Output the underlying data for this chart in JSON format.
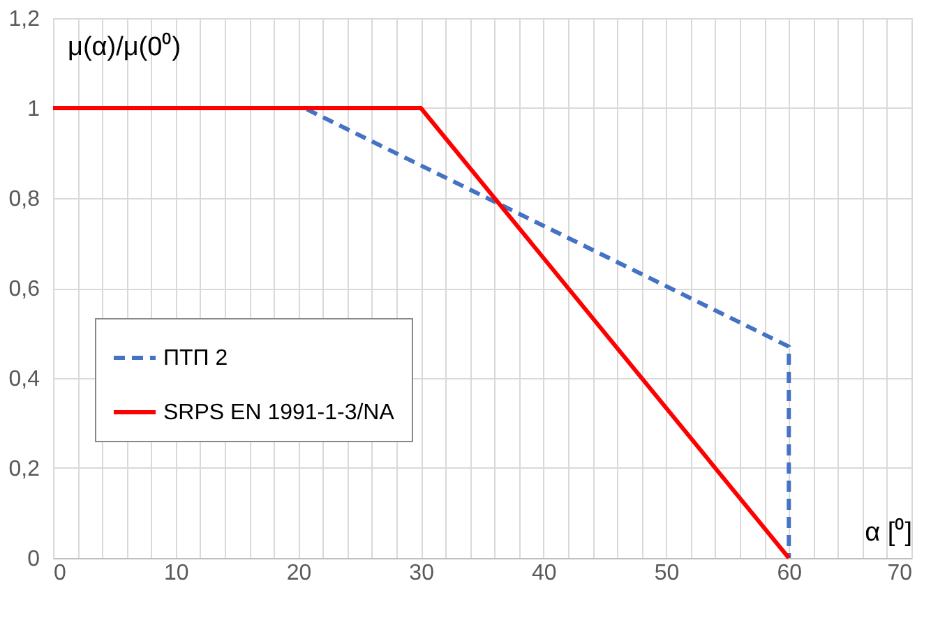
{
  "chart_data": {
    "type": "line",
    "xlabel": "α [⁰]",
    "ylabel": "μ(α)/μ(0⁰)",
    "series": [
      {
        "name": "ПТП 2",
        "color": "#4472c4",
        "line_style": "dashed",
        "x": [
          0,
          20.5,
          60,
          60
        ],
        "values": [
          1,
          1,
          0.47,
          0
        ]
      },
      {
        "name": "SRPS EN 1991-1-3/NA",
        "color": "#ff0000",
        "line_style": "solid",
        "x": [
          0,
          30,
          60
        ],
        "values": [
          1,
          1,
          0
        ]
      }
    ],
    "xlim": [
      0,
      70
    ],
    "ylim": [
      0,
      1.2
    ],
    "xticks": [
      0,
      {
        "value": 2,
        "label": null
      },
      {
        "value": 4,
        "label": null
      },
      {
        "value": 6,
        "label": null
      },
      {
        "value": 8,
        "label": null
      },
      10,
      {
        "value": 12,
        "label": null
      },
      {
        "value": 14,
        "label": null
      },
      {
        "value": 16,
        "label": null
      },
      {
        "value": 18,
        "label": null
      },
      20,
      {
        "value": 22,
        "label": null
      },
      {
        "value": 24,
        "label": null
      },
      {
        "value": 26,
        "label": null
      },
      {
        "value": 28,
        "label": null
      },
      30,
      {
        "value": 32,
        "label": null
      },
      {
        "value": 34,
        "label": null
      },
      {
        "value": 36,
        "label": null
      },
      {
        "value": 38,
        "label": null
      },
      40,
      {
        "value": 42,
        "label": null
      },
      {
        "value": 44,
        "label": null
      },
      {
        "value": 46,
        "label": null
      },
      {
        "value": 48,
        "label": null
      },
      50,
      {
        "value": 52,
        "label": null
      },
      {
        "value": 54,
        "label": null
      },
      {
        "value": 56,
        "label": null
      },
      {
        "value": 58,
        "label": null
      },
      60,
      {
        "value": 62,
        "label": null
      },
      {
        "value": 64,
        "label": null
      },
      {
        "value": 66,
        "label": null
      },
      {
        "value": 68,
        "label": null
      },
      70
    ],
    "yticks": [
      0,
      {
        "value": 0.2,
        "label": "0,2"
      },
      {
        "value": 0.4,
        "label": "0,4"
      },
      {
        "value": 0.6,
        "label": "0,6"
      },
      {
        "value": 0.8,
        "label": "0,8"
      },
      1,
      {
        "value": 1.2,
        "label": "1,2"
      }
    ],
    "grid": true,
    "legend": "left",
    "marker": "none"
  }
}
